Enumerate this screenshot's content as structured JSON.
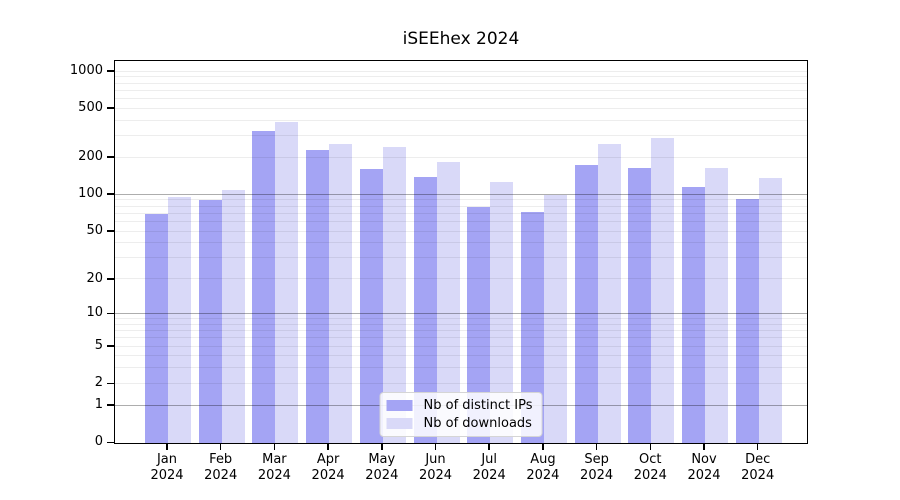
{
  "chart_data": {
    "type": "bar",
    "title": "iSEEhex 2024",
    "x_year": "2024",
    "categories": [
      "Jan",
      "Feb",
      "Mar",
      "Apr",
      "May",
      "Jun",
      "Jul",
      "Aug",
      "Sep",
      "Oct",
      "Nov",
      "Dec"
    ],
    "series": [
      {
        "name": "Nb of distinct IPs",
        "color": "#a4a4f4",
        "values": [
          70,
          91,
          333,
          230,
          163,
          140,
          80,
          72,
          174,
          165,
          115,
          93
        ]
      },
      {
        "name": "Nb of downloads",
        "color": "#d9d9f8",
        "values": [
          97,
          110,
          390,
          261,
          243,
          185,
          127,
          100,
          260,
          290,
          167,
          138
        ]
      }
    ],
    "y_scale": "log10(1+x)",
    "y_ticks": [
      0,
      1,
      2,
      5,
      10,
      20,
      50,
      100,
      200,
      500,
      1000
    ],
    "y_axis_max": 1265,
    "grid": true,
    "grid_major_values": [
      1,
      10,
      100
    ],
    "grid_minor_values": [
      2,
      3,
      4,
      5,
      6,
      7,
      8,
      9,
      20,
      30,
      40,
      50,
      60,
      70,
      80,
      90,
      200,
      300,
      400,
      500,
      600,
      700,
      800,
      900,
      1000
    ],
    "grid_major_color": "rgba(0,0,0,0.32)",
    "grid_minor_color": "rgba(0,0,0,0.07)",
    "legend_position": "lower center",
    "legend": [
      "Nb of distinct IPs",
      "Nb of downloads"
    ]
  }
}
